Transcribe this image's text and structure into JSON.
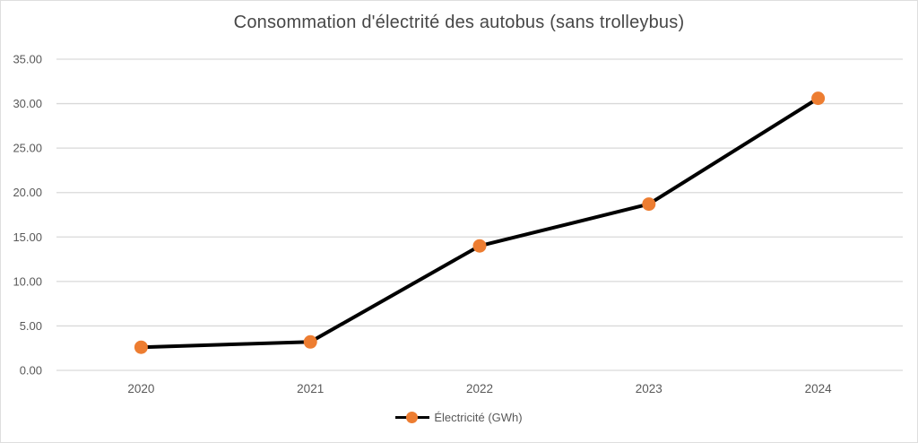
{
  "chart_data": {
    "type": "line",
    "title": "Consommation d'électrité des autobus (sans trolleybus)",
    "categories": [
      "2020",
      "2021",
      "2022",
      "2023",
      "2024"
    ],
    "series": [
      {
        "name": "Électricité (GWh)",
        "values": [
          2.6,
          3.2,
          14.0,
          18.7,
          30.6
        ]
      }
    ],
    "xlabel": "",
    "ylabel": "",
    "ylim": [
      0,
      35
    ],
    "ytick_step": 5,
    "ytick_labels": [
      "0.00",
      "5.00",
      "10.00",
      "15.00",
      "20.00",
      "25.00",
      "30.00",
      "35.00"
    ],
    "grid": "horizontal",
    "legend_position": "bottom-center",
    "colors": {
      "line": "#000000",
      "marker": "#ED7D31",
      "gridline": "#D9D9D9",
      "axis_text": "#595959",
      "title_text": "#474747",
      "background": "#FFFFFF",
      "frame_border": "#DEDEDE"
    }
  }
}
